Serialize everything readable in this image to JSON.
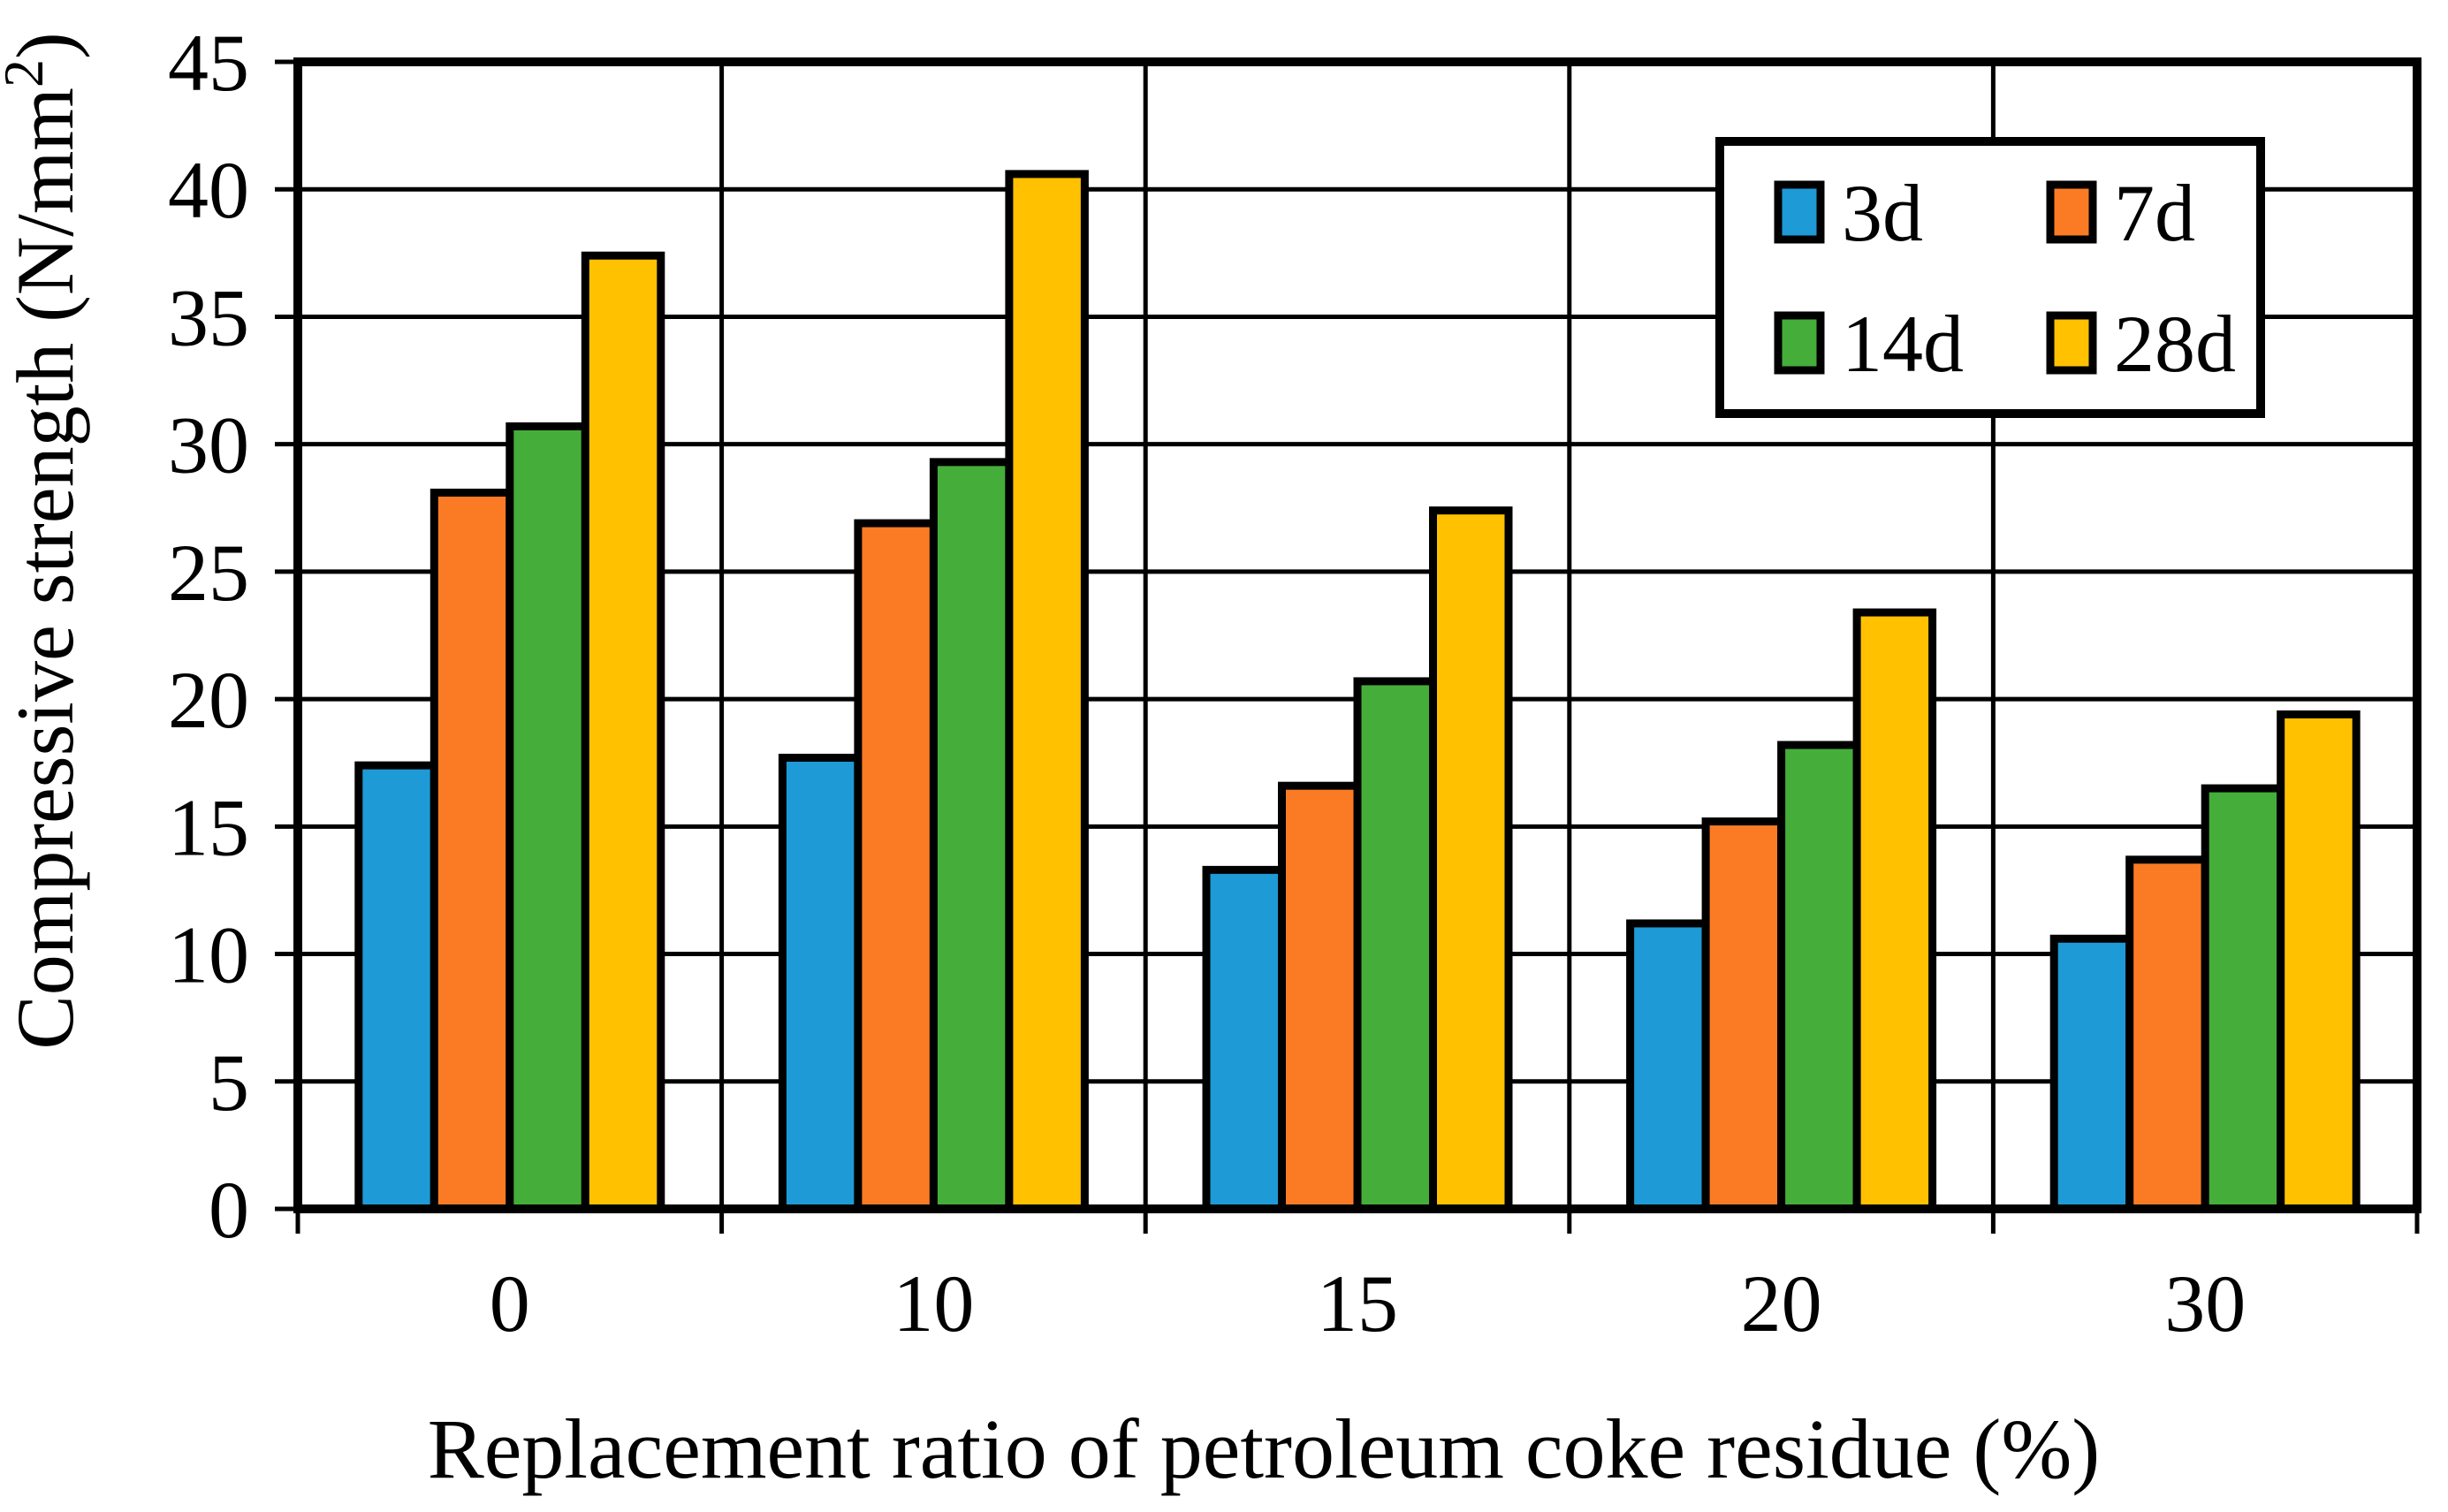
{
  "chart_data": {
    "type": "bar",
    "xlabel": "Replacement ratio of petroleum coke residue (%)",
    "ylabel": "Compressive strength (N/mm²)",
    "ylabel_parts": {
      "pre": "Compressive strength (N/mm",
      "sup": "2",
      "post": ")"
    },
    "categories": [
      "0",
      "10",
      "15",
      "20",
      "30"
    ],
    "series": [
      {
        "name": "3d",
        "color": "#1E9AD6",
        "values": [
          17.4,
          17.7,
          13.3,
          11.2,
          10.6
        ]
      },
      {
        "name": "7d",
        "color": "#FB7B24",
        "values": [
          28.1,
          26.9,
          16.6,
          15.2,
          13.7
        ]
      },
      {
        "name": "14d",
        "color": "#45AD3A",
        "values": [
          30.7,
          29.3,
          20.7,
          18.2,
          16.5
        ]
      },
      {
        "name": "28d",
        "color": "#FFC100",
        "values": [
          37.4,
          40.6,
          27.4,
          23.4,
          19.4
        ]
      }
    ],
    "ylim": [
      0,
      45
    ],
    "ytick_step": 5,
    "yticks": [
      "0",
      "5",
      "10",
      "15",
      "20",
      "25",
      "30",
      "35",
      "40",
      "45"
    ],
    "grid": true,
    "legend_position": "top-right",
    "legend_rows": [
      [
        "3d",
        "7d"
      ],
      [
        "14d",
        "28d"
      ]
    ]
  },
  "style": {
    "background": "#FFFFFF",
    "axis_color": "#000000",
    "grid_color": "#000000",
    "bar_border_color": "#000000",
    "legend_border_color": "#000000",
    "legend_background": "#FFFFFF",
    "text_color": "#000000"
  }
}
